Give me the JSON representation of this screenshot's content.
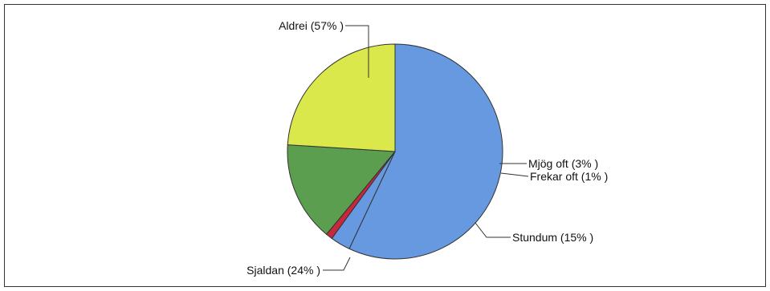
{
  "chart_data": {
    "type": "pie",
    "title": "",
    "slices": [
      {
        "label": "Aldrei (57% )",
        "value": 57,
        "color": "#6699e0"
      },
      {
        "label": "Mjög oft (3% )",
        "value": 3,
        "color": "#6699e0"
      },
      {
        "label": "Frekar oft (1% )",
        "value": 1,
        "color": "#c8283c"
      },
      {
        "label": "Stundum (15% )",
        "value": 15,
        "color": "#5c9e4f"
      },
      {
        "label": "Sjaldan (24% )",
        "value": 24,
        "color": "#dbe84b"
      }
    ]
  }
}
